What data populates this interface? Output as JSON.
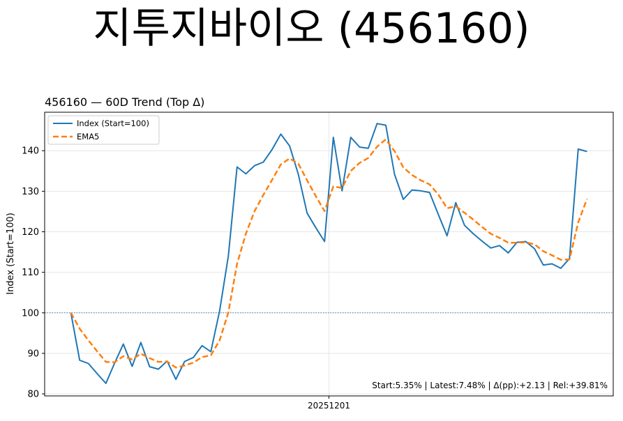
{
  "page_title": "지투지바이오 (456160)",
  "chart_data": {
    "type": "line",
    "title": "456160 — 60D Trend (Top Δ)",
    "xlabel": "",
    "ylabel": "Index (Start=100)",
    "x_tick_labels": [
      "20251201"
    ],
    "y_ticks": [
      80,
      90,
      100,
      110,
      120,
      130,
      140
    ],
    "ylim": [
      79.5,
      149.5
    ],
    "xlim": [
      -3,
      62
    ],
    "reference_line": 100,
    "grid": true,
    "legend_position": "top-left",
    "annotation": "Start:5.35% | Latest:7.48% | Δ(pp):+2.13 | Rel:+39.81%",
    "series": [
      {
        "name": "Index (Start=100)",
        "color": "#1f77b4",
        "style": "solid",
        "values": [
          100,
          88.3,
          87.5,
          85,
          82.6,
          87.6,
          92.3,
          86.8,
          92.7,
          86.7,
          86.1,
          88.1,
          83.6,
          88,
          89,
          91.9,
          90.4,
          100.5,
          114,
          136,
          134.3,
          136.3,
          137.2,
          140.3,
          144.1,
          141.2,
          134.2,
          124.6,
          121,
          117.6,
          143.3,
          130.1,
          143.3,
          140.9,
          140.6,
          146.7,
          146.3,
          134.2,
          128,
          130.3,
          130.1,
          129.7,
          124.3,
          119,
          127.2,
          121.6,
          119.5,
          117.7,
          116,
          116.6,
          114.8,
          117.4,
          117.6,
          115.8,
          111.8,
          112.1,
          111,
          113.4,
          140.4,
          139.8
        ]
      },
      {
        "name": "EMA5",
        "color": "#ff7f0e",
        "style": "dashed",
        "values": [
          100,
          96.1,
          93.2,
          90.5,
          87.9,
          87.8,
          89.3,
          88.5,
          89.9,
          88.8,
          87.9,
          88,
          86.5,
          87,
          87.7,
          89.1,
          89.5,
          93.2,
          100.1,
          112.1,
          119.5,
          125.1,
          129.1,
          132.8,
          136.6,
          138.1,
          136.8,
          132.7,
          128.8,
          125.1,
          131.2,
          130.8,
          135,
          137,
          138.2,
          141,
          142.8,
          139.9,
          135.9,
          134,
          132.7,
          131.7,
          129.2,
          125.8,
          126.3,
          124.7,
          123,
          121.2,
          119.5,
          118.5,
          117.3,
          117.3,
          117.4,
          116.9,
          115.2,
          114.2,
          113.1,
          113.2,
          122.3,
          128.1
        ]
      }
    ]
  }
}
